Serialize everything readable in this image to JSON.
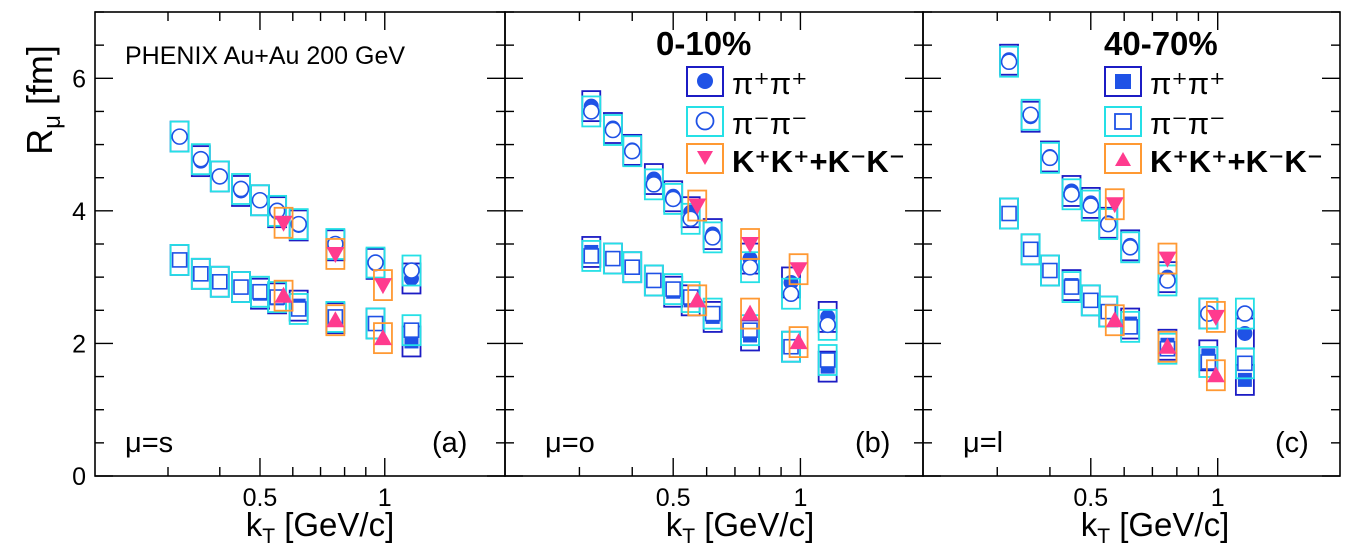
{
  "y_axis": {
    "label_main": "R",
    "label_sub": "μ",
    "label_unit": " [fm]",
    "range": [
      0,
      7
    ],
    "ticks": [
      0,
      2,
      4,
      6
    ],
    "tick_labels": [
      "0",
      "2",
      "4",
      "6"
    ]
  },
  "x_axis": {
    "label_main": "k",
    "label_sub": "T",
    "label_unit": " [GeV/c]",
    "scale": "log",
    "range": [
      0.2,
      1.95
    ],
    "ticks": [
      0.5,
      1
    ],
    "tick_labels": [
      "0.5",
      "1"
    ]
  },
  "legend": {
    "pipi_plus": "π⁺π⁺",
    "pipi_minus": "π⁻π⁻",
    "kk": "K⁺K⁺+K⁻K⁻"
  },
  "colors": {
    "pion_marker": "#1f52e6",
    "pion_sys_plus": "#1c1cc4",
    "pion_sys_minus": "#25e0e6",
    "kaon_marker": "#ff3b8e",
    "kaon_sys": "#ff9933"
  },
  "chart_data": [
    {
      "type": "scatter",
      "panel_label": "(a)",
      "mu_label": "μ=s",
      "note": "PHENIX Au+Au 200 GeV",
      "centrality": "",
      "series": [
        {
          "name": "π⁺π⁺",
          "centrality": "0-10%",
          "marker": "filled-circle",
          "x": [
            0.32,
            0.36,
            0.4,
            0.45,
            0.5,
            0.55,
            0.62,
            0.76,
            0.95,
            1.16
          ],
          "y": [
            5.12,
            4.75,
            4.52,
            4.3,
            4.16,
            3.98,
            3.78,
            3.48,
            3.2,
            2.98
          ]
        },
        {
          "name": "π⁻π⁻",
          "centrality": "0-10%",
          "marker": "open-circle",
          "x": [
            0.32,
            0.36,
            0.4,
            0.45,
            0.5,
            0.55,
            0.62,
            0.76,
            0.95,
            1.16
          ],
          "y": [
            5.12,
            4.78,
            4.52,
            4.33,
            4.16,
            4.0,
            3.8,
            3.5,
            3.22,
            3.1
          ]
        },
        {
          "name": "K⁺K⁺+K⁻K⁻",
          "centrality": "0-10%",
          "marker": "down-triangle",
          "x": [
            0.57,
            0.76,
            0.99
          ],
          "y": [
            3.82,
            3.35,
            2.88
          ]
        },
        {
          "name": "π⁺π⁺",
          "centrality": "40-70%",
          "marker": "filled-square",
          "x": [
            0.32,
            0.36,
            0.4,
            0.45,
            0.5,
            0.55,
            0.62,
            0.76,
            0.95,
            1.16
          ],
          "y": [
            3.26,
            3.05,
            2.93,
            2.85,
            2.75,
            2.68,
            2.57,
            2.38,
            2.3,
            2.03
          ]
        },
        {
          "name": "π⁻π⁻",
          "centrality": "40-70%",
          "marker": "open-square",
          "x": [
            0.32,
            0.36,
            0.4,
            0.45,
            0.5,
            0.55,
            0.62,
            0.76,
            0.95,
            1.16
          ],
          "y": [
            3.26,
            3.05,
            2.93,
            2.85,
            2.78,
            2.7,
            2.52,
            2.4,
            2.3,
            2.2
          ]
        },
        {
          "name": "K⁺K⁺+K⁻K⁻",
          "centrality": "40-70%",
          "marker": "up-triangle",
          "x": [
            0.57,
            0.76,
            0.99
          ],
          "y": [
            2.72,
            2.35,
            2.08
          ]
        }
      ]
    },
    {
      "type": "scatter",
      "panel_label": "(b)",
      "mu_label": "μ=o",
      "note": "",
      "centrality": "0-10%",
      "series": [
        {
          "name": "π⁺π⁺",
          "centrality": "0-10%",
          "marker": "filled-circle",
          "x": [
            0.32,
            0.36,
            0.4,
            0.45,
            0.5,
            0.55,
            0.62,
            0.76,
            0.95,
            1.16
          ],
          "y": [
            5.58,
            5.25,
            4.92,
            4.48,
            4.22,
            3.98,
            3.65,
            3.28,
            2.92,
            2.4
          ]
        },
        {
          "name": "π⁻π⁻",
          "centrality": "0-10%",
          "marker": "open-circle",
          "x": [
            0.32,
            0.36,
            0.4,
            0.45,
            0.5,
            0.55,
            0.62,
            0.76,
            0.95,
            1.16
          ],
          "y": [
            5.5,
            5.22,
            4.9,
            4.4,
            4.18,
            3.88,
            3.6,
            3.15,
            2.75,
            2.28
          ]
        },
        {
          "name": "K⁺K⁺+K⁻K⁻",
          "centrality": "0-10%",
          "marker": "down-triangle",
          "x": [
            0.57,
            0.76,
            0.99
          ],
          "y": [
            4.08,
            3.5,
            3.12
          ]
        },
        {
          "name": "π⁺π⁺",
          "centrality": "40-70%",
          "marker": "filled-square",
          "x": [
            0.32,
            0.36,
            0.4,
            0.45,
            0.5,
            0.55,
            0.62,
            0.76,
            0.95,
            1.16
          ],
          "y": [
            3.38,
            3.28,
            3.15,
            2.95,
            2.78,
            2.65,
            2.4,
            2.12,
            1.95,
            1.65
          ]
        },
        {
          "name": "π⁻π⁻",
          "centrality": "40-70%",
          "marker": "open-square",
          "x": [
            0.32,
            0.36,
            0.4,
            0.45,
            0.5,
            0.55,
            0.62,
            0.76,
            0.95,
            1.16
          ],
          "y": [
            3.32,
            3.28,
            3.15,
            2.95,
            2.82,
            2.7,
            2.45,
            2.2,
            1.95,
            1.75
          ]
        },
        {
          "name": "K⁺K⁺+K⁻K⁻",
          "centrality": "40-70%",
          "marker": "up-triangle",
          "x": [
            0.57,
            0.76,
            0.99
          ],
          "y": [
            2.65,
            2.45,
            2.02
          ]
        }
      ]
    },
    {
      "type": "scatter",
      "panel_label": "(c)",
      "mu_label": "μ=l",
      "note": "",
      "centrality": "40-70%",
      "series": [
        {
          "name": "π⁺π⁺",
          "centrality": "0-10%",
          "marker": "filled-circle",
          "x": [
            0.32,
            0.36,
            0.4,
            0.45,
            0.5,
            0.55,
            0.62,
            0.76,
            0.95,
            1.16
          ],
          "y": [
            6.28,
            5.42,
            4.82,
            4.3,
            4.12,
            3.82,
            3.48,
            3.0,
            2.45,
            2.15
          ]
        },
        {
          "name": "π⁻π⁻",
          "centrality": "0-10%",
          "marker": "open-circle",
          "x": [
            0.32,
            0.36,
            0.4,
            0.45,
            0.5,
            0.55,
            0.62,
            0.76,
            0.95,
            1.16
          ],
          "y": [
            6.25,
            5.45,
            4.8,
            4.25,
            4.08,
            3.8,
            3.45,
            2.95,
            2.45,
            2.45
          ]
        },
        {
          "name": "K⁺K⁺+K⁻K⁻",
          "centrality": "0-10%",
          "marker": "down-triangle",
          "x": [
            0.57,
            0.76,
            0.99
          ],
          "y": [
            4.1,
            3.28,
            2.4
          ]
        },
        {
          "name": "π⁺π⁺",
          "centrality": "40-70%",
          "marker": "filled-square",
          "x": [
            0.32,
            0.36,
            0.4,
            0.45,
            0.5,
            0.55,
            0.62,
            0.76,
            0.95,
            1.16
          ],
          "y": [
            3.96,
            3.42,
            3.1,
            2.88,
            2.65,
            2.48,
            2.3,
            1.98,
            1.82,
            1.45
          ]
        },
        {
          "name": "π⁻π⁻",
          "centrality": "40-70%",
          "marker": "open-square",
          "x": [
            0.32,
            0.36,
            0.4,
            0.45,
            0.5,
            0.55,
            0.62,
            0.76,
            0.95,
            1.16
          ],
          "y": [
            3.96,
            3.42,
            3.1,
            2.85,
            2.65,
            2.48,
            2.25,
            1.92,
            1.72,
            1.7
          ]
        },
        {
          "name": "K⁺K⁺+K⁻K⁻",
          "centrality": "40-70%",
          "marker": "up-triangle",
          "x": [
            0.57,
            0.76,
            0.99
          ],
          "y": [
            2.35,
            1.95,
            1.52
          ]
        }
      ]
    }
  ]
}
